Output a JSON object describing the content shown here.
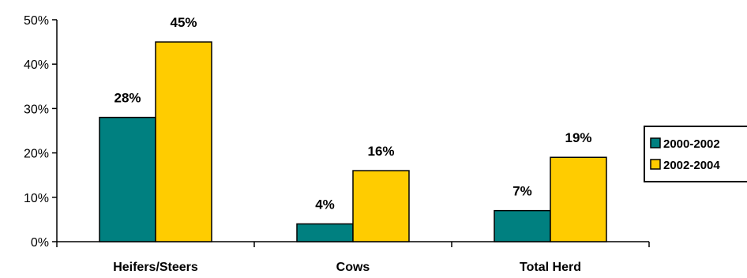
{
  "chart_data": {
    "type": "bar",
    "categories": [
      "Heifers/Steers",
      "Cows",
      "Total Herd"
    ],
    "series": [
      {
        "name": "2000-2002",
        "values": [
          28,
          4,
          7
        ],
        "labels": [
          "28%",
          "4%",
          "7%"
        ],
        "color": "#008080"
      },
      {
        "name": "2002-2004",
        "values": [
          45,
          16,
          19
        ],
        "labels": [
          "45%",
          "16%",
          "19%"
        ],
        "color": "#FFCC00"
      }
    ],
    "ylim": [
      0,
      50
    ],
    "yticks": [
      0,
      10,
      20,
      30,
      40,
      50
    ],
    "ytick_labels": [
      "0%",
      "10%",
      "20%",
      "30%",
      "40%",
      "50%"
    ],
    "title": "",
    "xlabel": "",
    "ylabel": "",
    "grid": false,
    "legend_position": "right"
  }
}
